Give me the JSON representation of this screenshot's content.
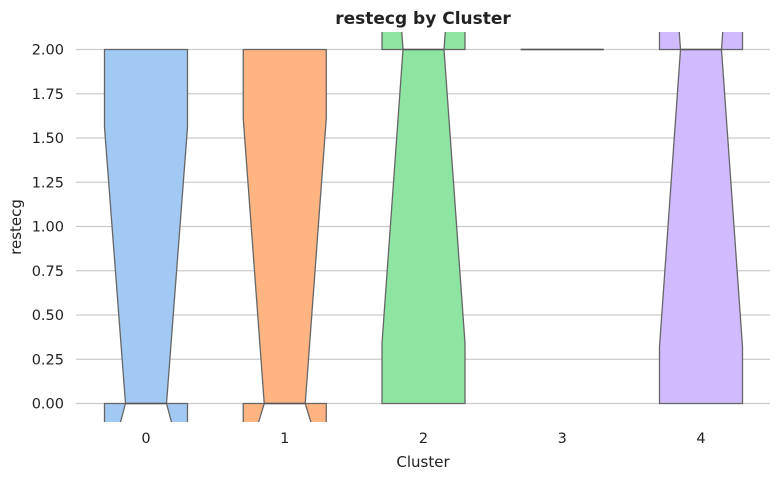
{
  "chart_data": {
    "type": "box",
    "notched": true,
    "title": "restecg by Cluster",
    "xlabel": "Cluster",
    "ylabel": "restecg",
    "categories": [
      "0",
      "1",
      "2",
      "3",
      "4"
    ],
    "y_ticks": [
      "0.00",
      "0.25",
      "0.50",
      "0.75",
      "1.00",
      "1.25",
      "1.50",
      "1.75",
      "2.00"
    ],
    "ylim": [
      -0.1,
      2.1
    ],
    "grid": "horizontal",
    "legend": "none",
    "boxes": [
      {
        "category": "0",
        "q1": 0,
        "median": 0,
        "q3": 2,
        "notch_low": -0.44,
        "notch_high": 1.56,
        "color": "#a1c9f4"
      },
      {
        "category": "1",
        "q1": 0,
        "median": 0,
        "q3": 2,
        "notch_low": -0.39,
        "notch_high": 1.61,
        "color": "#ffb482"
      },
      {
        "category": "2",
        "q1": 0,
        "median": 2,
        "q3": 2,
        "notch_low": 0.34,
        "notch_high": 3.66,
        "color": "#8de5a1"
      },
      {
        "category": "3",
        "q1": 2,
        "median": 2,
        "q3": 2,
        "notch_low": 2,
        "notch_high": 2,
        "color": "#d0bbff"
      },
      {
        "category": "4",
        "q1": 0,
        "median": 2,
        "q3": 2,
        "notch_low": 0.32,
        "notch_high": 3.68,
        "color": "#d0bbff"
      }
    ]
  }
}
